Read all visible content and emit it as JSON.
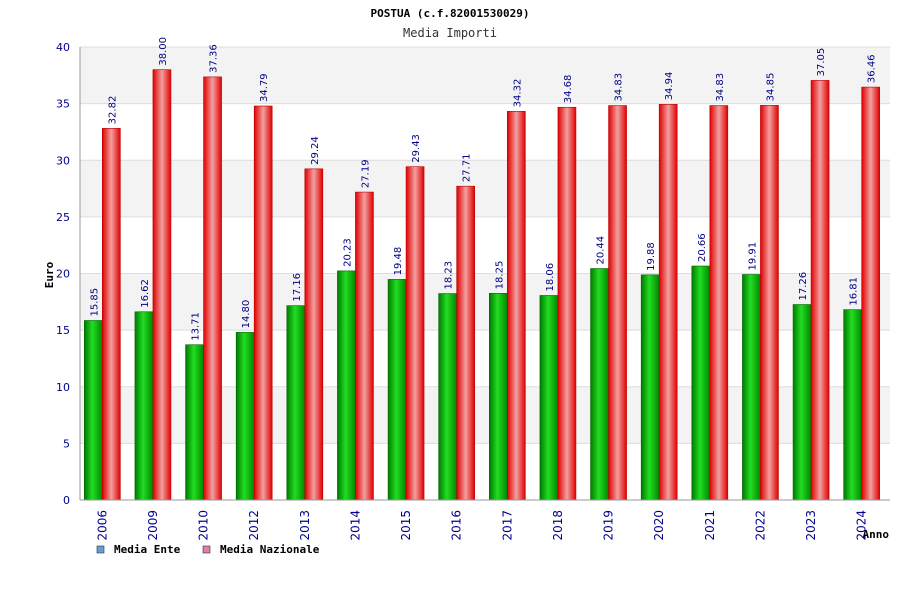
{
  "chart_data": {
    "type": "bar",
    "title": "POSTUA (c.f.82001530029)",
    "subtitle": "Media Importi",
    "xlabel": "Anno",
    "ylabel": "Euro",
    "ylim": [
      0,
      40
    ],
    "yticks": [
      0,
      5,
      10,
      15,
      20,
      25,
      30,
      35,
      40
    ],
    "grid": true,
    "legend_position": "bottom-left",
    "categories": [
      "2006",
      "2009",
      "2010",
      "2012",
      "2013",
      "2014",
      "2015",
      "2016",
      "2017",
      "2018",
      "2019",
      "2020",
      "2021",
      "2022",
      "2023",
      "2024"
    ],
    "series": [
      {
        "name": "Media Ente",
        "color": "#00b000",
        "legend_color": "#5f9fdf",
        "values": [
          15.85,
          16.62,
          13.71,
          14.8,
          17.16,
          20.23,
          19.48,
          18.23,
          18.25,
          18.06,
          20.44,
          19.88,
          20.66,
          19.91,
          17.26,
          16.81
        ],
        "labels": [
          "15.85",
          "16.62",
          "13.71",
          "14.80",
          "17.16",
          "20.23",
          "19.48",
          "18.23",
          "18.25",
          "18.06",
          "20.44",
          "19.88",
          "20.66",
          "19.91",
          "17.26",
          "16.81"
        ]
      },
      {
        "name": "Media Nazionale",
        "color": "#ee0000",
        "legend_color": "#df7faf",
        "values": [
          32.82,
          38.0,
          37.36,
          34.79,
          29.24,
          27.19,
          29.43,
          27.71,
          34.32,
          34.68,
          34.83,
          34.94,
          34.83,
          34.85,
          37.05,
          36.46
        ],
        "labels": [
          "32.82",
          "38.00",
          "37.36",
          "34.79",
          "29.24",
          "27.19",
          "29.43",
          "27.71",
          "34.32",
          "34.68",
          "34.83",
          "34.94",
          "34.83",
          "34.85",
          "37.05",
          "36.46"
        ]
      }
    ]
  }
}
